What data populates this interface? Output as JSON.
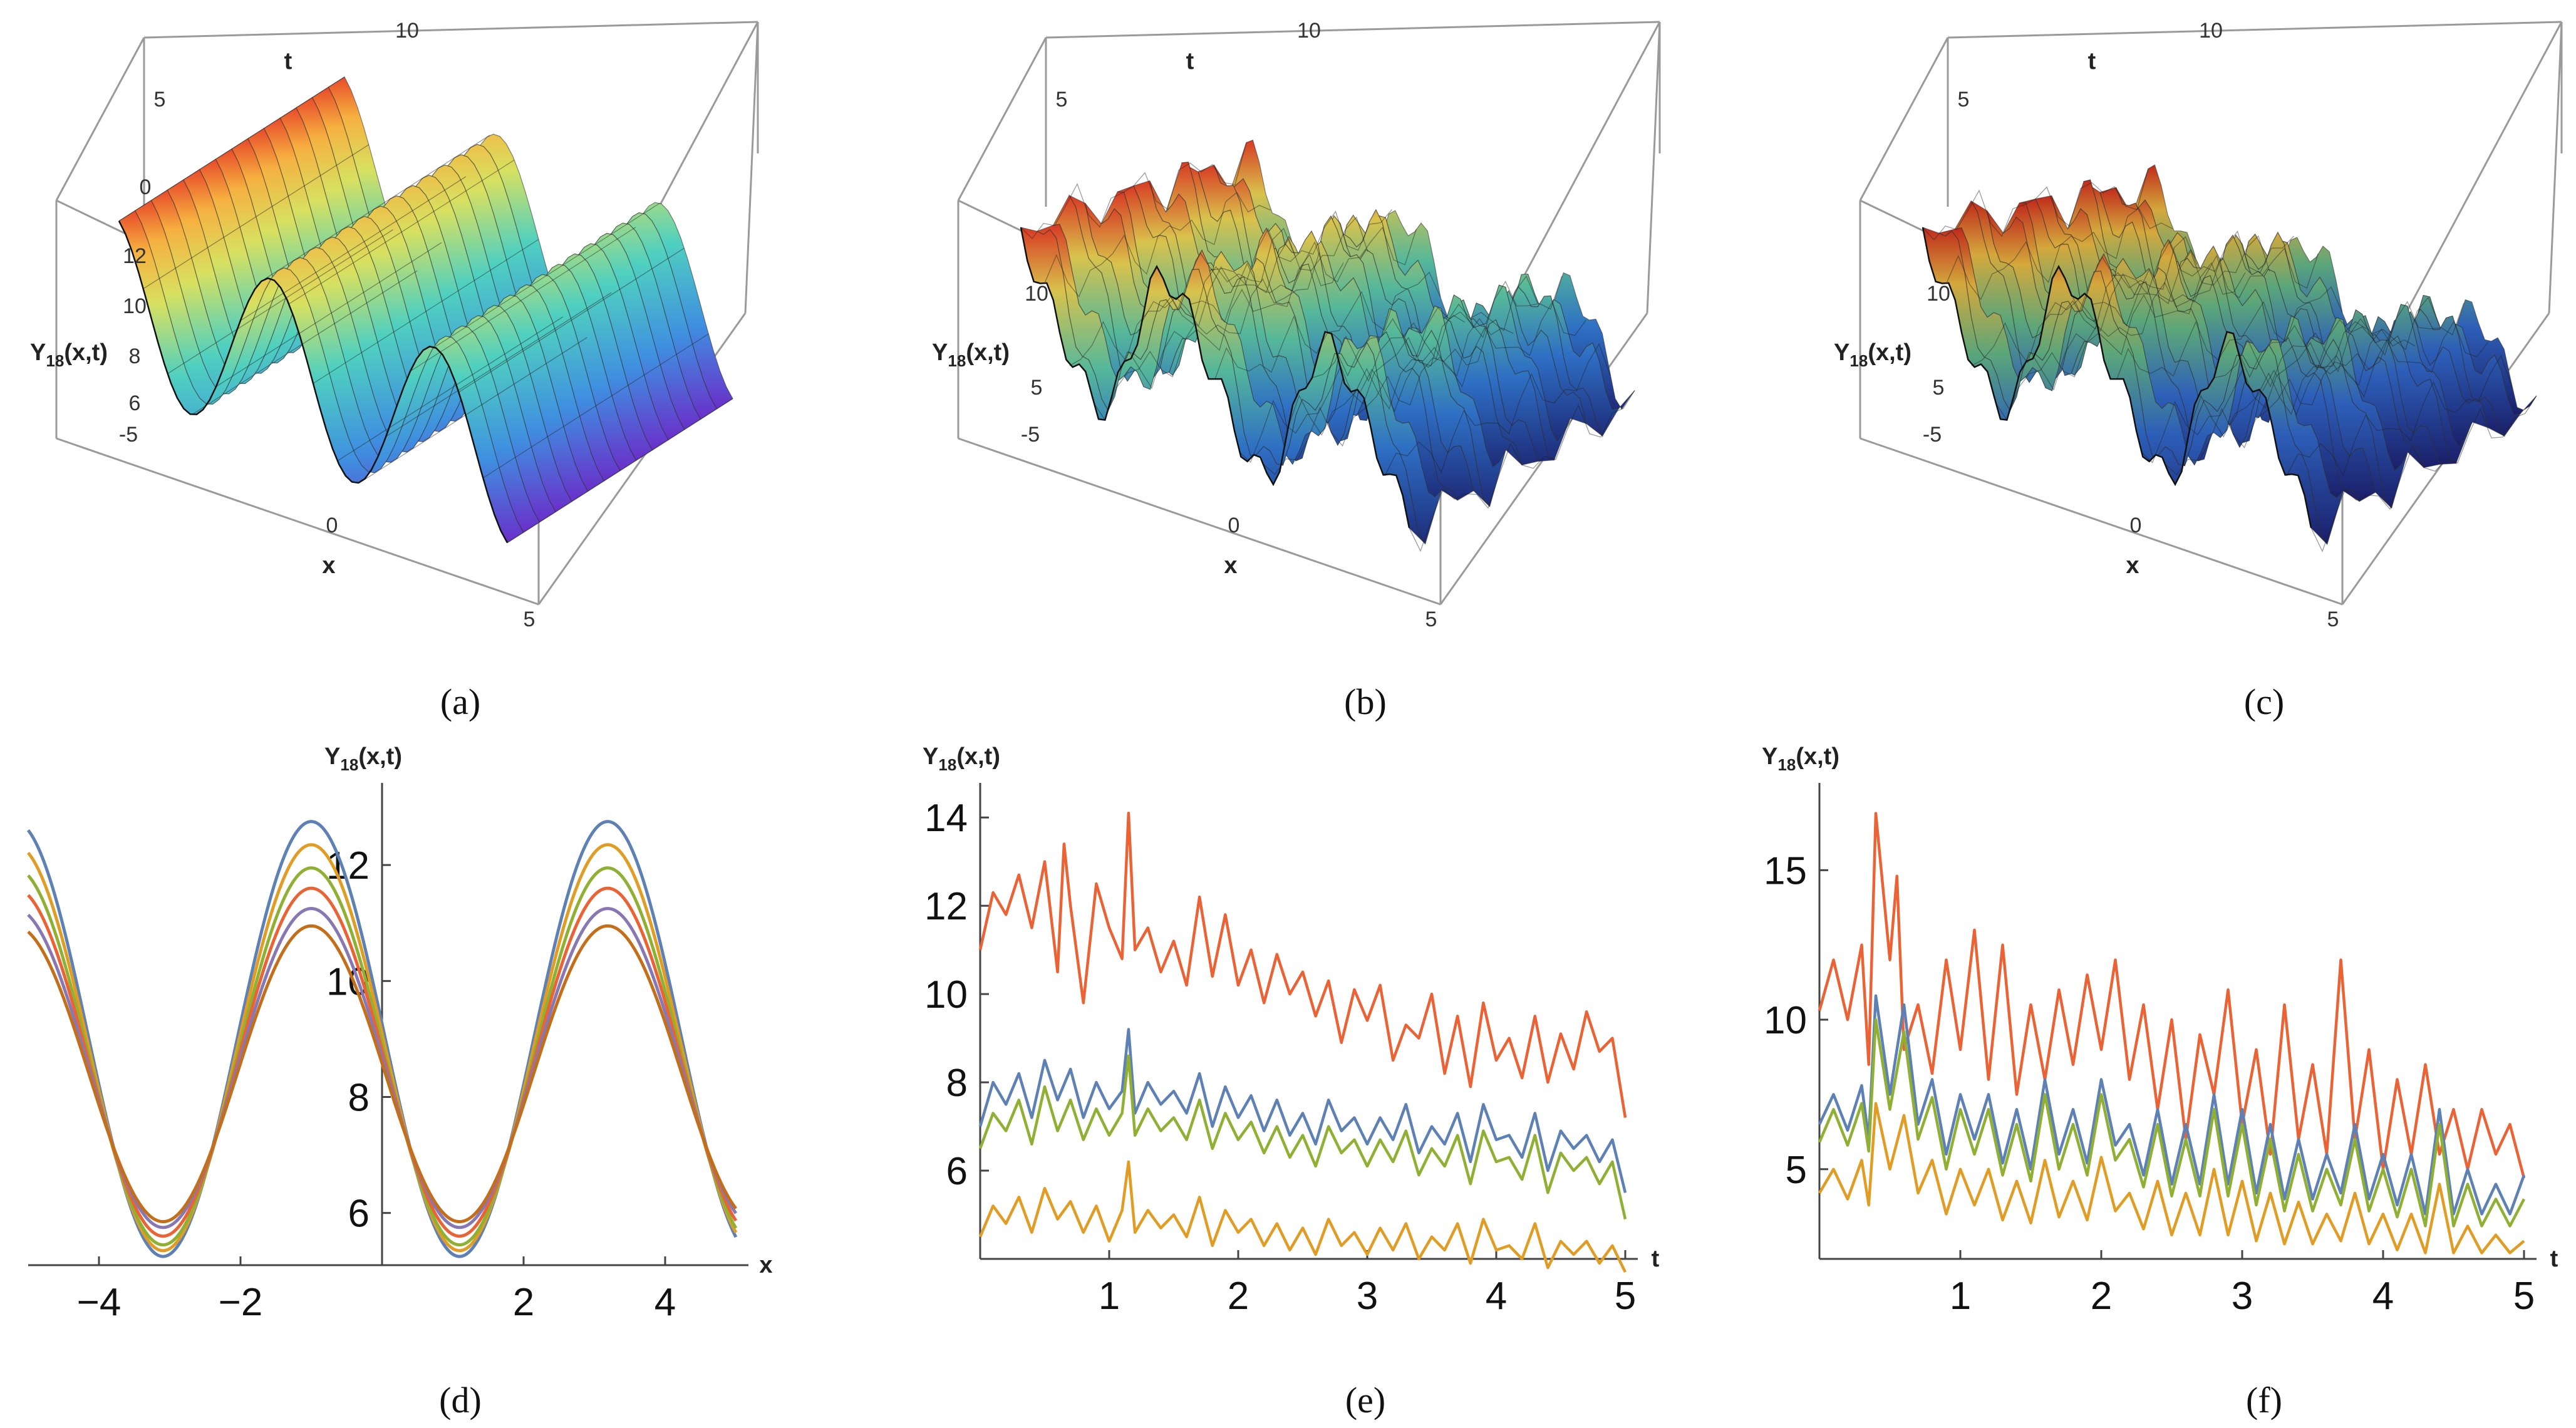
{
  "chart_data": [
    {
      "panel": "a",
      "type": "surface3d",
      "caption": "(a)",
      "x_label": "x",
      "t_label": "t",
      "z_label": "Y18(x,t)",
      "x_ticks": [
        "-5",
        "0",
        "5"
      ],
      "t_ticks": [
        "0",
        "5",
        "10"
      ],
      "z_ticks": [
        "6",
        "8",
        "10",
        "12"
      ],
      "x_range": [
        -5,
        5
      ],
      "t_range": [
        0,
        10
      ],
      "z_range": [
        5.5,
        13
      ]
    },
    {
      "panel": "b",
      "type": "surface3d",
      "caption": "(b)",
      "x_label": "x",
      "t_label": "t",
      "z_label": "Y18(x,t)",
      "x_ticks": [
        "-5",
        "0",
        "5"
      ],
      "t_ticks": [
        "5",
        "10"
      ],
      "z_ticks": [
        "5",
        "10"
      ],
      "x_range": [
        -5,
        5
      ],
      "t_range": [
        0,
        10
      ],
      "z_range": [
        4,
        12
      ]
    },
    {
      "panel": "c",
      "type": "surface3d",
      "caption": "(c)",
      "x_label": "x",
      "t_label": "t",
      "z_label": "Y18(x,t)",
      "x_ticks": [
        "-5",
        "0",
        "5"
      ],
      "t_ticks": [
        "5",
        "10"
      ],
      "z_ticks": [
        "5",
        "10"
      ],
      "x_range": [
        -5,
        5
      ],
      "t_range": [
        0,
        10
      ],
      "z_range": [
        2,
        12
      ]
    },
    {
      "panel": "d",
      "type": "line",
      "caption": "(d)",
      "xlabel": "x",
      "ylabel": "Y18(x,t)",
      "xlim": [
        -5,
        5
      ],
      "ylim": [
        5.1,
        13.2
      ],
      "x_ticks": [
        -4,
        -2,
        2,
        4
      ],
      "y_ticks": [
        6,
        8,
        10,
        12
      ],
      "colors": [
        "#5e81b5",
        "#e19c24",
        "#8fb032",
        "#eb6235",
        "#8778b3",
        "#c56e1a"
      ],
      "series": [
        {
          "amplitude": 3.75,
          "offset": 9.0
        },
        {
          "amplitude": 3.5,
          "offset": 8.85
        },
        {
          "amplitude": 3.25,
          "offset": 8.7
        },
        {
          "amplitude": 3.0,
          "offset": 8.6
        },
        {
          "amplitude": 2.75,
          "offset": 8.5
        },
        {
          "amplitude": 2.55,
          "offset": 8.4
        }
      ]
    },
    {
      "panel": "e",
      "type": "line",
      "caption": "(e)",
      "xlabel": "t",
      "ylabel": "Y18(x,t)",
      "xlim": [
        0,
        5
      ],
      "ylim": [
        4,
        14.5
      ],
      "x_ticks": [
        1,
        2,
        3,
        4,
        5
      ],
      "y_ticks": [
        6,
        8,
        10,
        12,
        14
      ],
      "series": [
        {
          "color": "#eb6235",
          "x": [
            0,
            0.1,
            0.2,
            0.3,
            0.4,
            0.5,
            0.6,
            0.65,
            0.7,
            0.8,
            0.9,
            1.0,
            1.1,
            1.15,
            1.2,
            1.3,
            1.4,
            1.5,
            1.6,
            1.7,
            1.8,
            1.9,
            2.0,
            2.1,
            2.2,
            2.3,
            2.4,
            2.5,
            2.6,
            2.7,
            2.8,
            2.9,
            3.0,
            3.1,
            3.2,
            3.3,
            3.4,
            3.5,
            3.6,
            3.7,
            3.8,
            3.9,
            4.0,
            4.1,
            4.2,
            4.3,
            4.4,
            4.5,
            4.6,
            4.7,
            4.8,
            4.9,
            5.0
          ],
          "y": [
            11.0,
            12.3,
            11.8,
            12.7,
            11.5,
            13.0,
            10.5,
            13.4,
            12.0,
            9.8,
            12.5,
            11.5,
            10.8,
            14.1,
            11.0,
            11.5,
            10.5,
            11.2,
            10.2,
            12.2,
            10.4,
            11.8,
            10.2,
            11.0,
            9.8,
            10.9,
            10.0,
            10.5,
            9.5,
            10.3,
            8.9,
            10.1,
            9.4,
            10.2,
            8.5,
            9.3,
            9.0,
            10.0,
            8.2,
            9.5,
            7.9,
            9.8,
            8.5,
            9.0,
            8.1,
            9.5,
            8.0,
            9.1,
            8.3,
            9.6,
            8.7,
            9.0,
            7.2
          ]
        },
        {
          "color": "#5e81b5",
          "x": [
            0,
            0.1,
            0.2,
            0.3,
            0.4,
            0.5,
            0.6,
            0.7,
            0.8,
            0.9,
            1.0,
            1.1,
            1.15,
            1.2,
            1.3,
            1.4,
            1.5,
            1.6,
            1.7,
            1.8,
            1.9,
            2.0,
            2.1,
            2.2,
            2.3,
            2.4,
            2.5,
            2.6,
            2.7,
            2.8,
            2.9,
            3.0,
            3.1,
            3.2,
            3.3,
            3.4,
            3.5,
            3.6,
            3.7,
            3.8,
            3.9,
            4.0,
            4.1,
            4.2,
            4.3,
            4.4,
            4.5,
            4.6,
            4.7,
            4.8,
            4.9,
            5.0
          ],
          "y": [
            7.0,
            8.0,
            7.5,
            8.2,
            7.2,
            8.5,
            7.6,
            8.3,
            7.2,
            8.0,
            7.4,
            7.8,
            9.2,
            7.3,
            8.0,
            7.5,
            7.8,
            7.3,
            8.2,
            7.0,
            7.9,
            7.2,
            7.7,
            6.9,
            7.6,
            6.8,
            7.3,
            6.6,
            7.6,
            6.9,
            7.2,
            6.6,
            7.2,
            6.7,
            7.5,
            6.4,
            7.0,
            6.6,
            7.3,
            6.2,
            7.5,
            6.7,
            6.8,
            6.3,
            7.3,
            6.0,
            6.9,
            6.5,
            6.8,
            6.2,
            6.7,
            5.5
          ]
        },
        {
          "color": "#8fb032",
          "x": [
            0,
            0.1,
            0.2,
            0.3,
            0.4,
            0.5,
            0.6,
            0.7,
            0.8,
            0.9,
            1.0,
            1.1,
            1.15,
            1.2,
            1.3,
            1.4,
            1.5,
            1.6,
            1.7,
            1.8,
            1.9,
            2.0,
            2.1,
            2.2,
            2.3,
            2.4,
            2.5,
            2.6,
            2.7,
            2.8,
            2.9,
            3.0,
            3.1,
            3.2,
            3.3,
            3.4,
            3.5,
            3.6,
            3.7,
            3.8,
            3.9,
            4.0,
            4.1,
            4.2,
            4.3,
            4.4,
            4.5,
            4.6,
            4.7,
            4.8,
            4.9,
            5.0
          ],
          "y": [
            6.5,
            7.3,
            6.9,
            7.6,
            6.6,
            7.9,
            6.9,
            7.6,
            6.7,
            7.4,
            6.8,
            7.3,
            8.6,
            6.8,
            7.4,
            6.9,
            7.2,
            6.7,
            7.6,
            6.5,
            7.3,
            6.7,
            7.1,
            6.4,
            7.0,
            6.3,
            6.8,
            6.1,
            7.0,
            6.4,
            6.7,
            6.1,
            6.7,
            6.2,
            6.9,
            5.9,
            6.5,
            6.1,
            6.8,
            5.7,
            6.9,
            6.2,
            6.3,
            5.8,
            6.8,
            5.5,
            6.4,
            6.0,
            6.3,
            5.7,
            6.2,
            4.9
          ]
        },
        {
          "color": "#e19c24",
          "x": [
            0,
            0.1,
            0.2,
            0.3,
            0.4,
            0.5,
            0.6,
            0.7,
            0.8,
            0.9,
            1.0,
            1.1,
            1.15,
            1.2,
            1.3,
            1.4,
            1.5,
            1.6,
            1.7,
            1.8,
            1.9,
            2.0,
            2.1,
            2.2,
            2.3,
            2.4,
            2.5,
            2.6,
            2.7,
            2.8,
            2.9,
            3.0,
            3.1,
            3.2,
            3.3,
            3.4,
            3.5,
            3.6,
            3.7,
            3.8,
            3.9,
            4.0,
            4.1,
            4.2,
            4.3,
            4.4,
            4.5,
            4.6,
            4.7,
            4.8,
            4.9,
            5.0
          ],
          "y": [
            4.5,
            5.2,
            4.8,
            5.4,
            4.6,
            5.6,
            4.9,
            5.3,
            4.6,
            5.2,
            4.4,
            5.1,
            6.2,
            4.6,
            5.1,
            4.7,
            5.0,
            4.5,
            5.4,
            4.3,
            5.1,
            4.6,
            4.9,
            4.3,
            4.8,
            4.2,
            4.7,
            4.1,
            4.9,
            4.3,
            4.6,
            4.1,
            4.7,
            4.2,
            4.8,
            4.0,
            4.5,
            4.2,
            4.8,
            3.9,
            4.9,
            4.2,
            4.3,
            4.0,
            4.8,
            3.8,
            4.4,
            4.1,
            4.4,
            3.9,
            4.3,
            3.7
          ]
        }
      ]
    },
    {
      "panel": "f",
      "type": "line",
      "caption": "(f)",
      "xlabel": "t",
      "ylabel": "Y18(x,t)",
      "xlim": [
        0,
        5
      ],
      "ylim": [
        2,
        17.5
      ],
      "x_ticks": [
        1,
        2,
        3,
        4,
        5
      ],
      "y_ticks": [
        5,
        10,
        15
      ],
      "series": [
        {
          "color": "#eb6235",
          "x": [
            0,
            0.1,
            0.2,
            0.3,
            0.35,
            0.4,
            0.5,
            0.55,
            0.6,
            0.7,
            0.8,
            0.9,
            1.0,
            1.1,
            1.2,
            1.3,
            1.4,
            1.5,
            1.6,
            1.7,
            1.8,
            1.9,
            2.0,
            2.1,
            2.2,
            2.3,
            2.4,
            2.5,
            2.6,
            2.7,
            2.8,
            2.9,
            3.0,
            3.1,
            3.2,
            3.3,
            3.4,
            3.5,
            3.6,
            3.7,
            3.8,
            3.9,
            4.0,
            4.1,
            4.2,
            4.3,
            4.4,
            4.5,
            4.6,
            4.7,
            4.8,
            4.9,
            5.0
          ],
          "y": [
            10.3,
            12.0,
            10.0,
            12.5,
            8.5,
            16.9,
            12.0,
            14.8,
            9.0,
            10.5,
            8.2,
            12.0,
            9.0,
            13.0,
            8.0,
            12.5,
            7.5,
            10.5,
            8.0,
            11.0,
            8.5,
            11.5,
            9.0,
            12.0,
            8.0,
            10.5,
            7.0,
            10.0,
            6.0,
            9.5,
            7.5,
            11.0,
            6.5,
            9.0,
            5.5,
            10.5,
            6.0,
            8.5,
            5.5,
            12.0,
            6.0,
            9.0,
            5.0,
            8.0,
            5.5,
            8.5,
            5.5,
            7.0,
            5.0,
            7.0,
            5.5,
            6.5,
            4.7
          ]
        },
        {
          "color": "#5e81b5",
          "x": [
            0,
            0.1,
            0.2,
            0.3,
            0.35,
            0.4,
            0.5,
            0.6,
            0.7,
            0.8,
            0.9,
            1.0,
            1.1,
            1.2,
            1.3,
            1.4,
            1.5,
            1.6,
            1.7,
            1.8,
            1.9,
            2.0,
            2.1,
            2.2,
            2.3,
            2.4,
            2.5,
            2.6,
            2.7,
            2.8,
            2.9,
            3.0,
            3.1,
            3.2,
            3.3,
            3.4,
            3.5,
            3.6,
            3.7,
            3.8,
            3.9,
            4.0,
            4.1,
            4.2,
            4.3,
            4.4,
            4.5,
            4.6,
            4.7,
            4.8,
            4.9,
            5.0
          ],
          "y": [
            6.5,
            7.5,
            6.3,
            7.8,
            6.0,
            10.8,
            7.5,
            10.5,
            6.5,
            8.0,
            5.5,
            7.5,
            6.0,
            7.5,
            5.2,
            7.0,
            5.0,
            8.0,
            5.5,
            7.0,
            5.2,
            8.0,
            5.8,
            6.5,
            4.8,
            7.0,
            4.5,
            6.5,
            4.5,
            7.5,
            4.5,
            7.0,
            4.2,
            6.5,
            4.0,
            6.0,
            4.0,
            5.5,
            4.2,
            6.5,
            4.0,
            5.5,
            3.8,
            5.5,
            3.5,
            7.0,
            3.5,
            5.0,
            3.5,
            4.5,
            3.5,
            4.8
          ]
        },
        {
          "color": "#8fb032",
          "x": [
            0,
            0.1,
            0.2,
            0.3,
            0.35,
            0.4,
            0.5,
            0.6,
            0.7,
            0.8,
            0.9,
            1.0,
            1.1,
            1.2,
            1.3,
            1.4,
            1.5,
            1.6,
            1.7,
            1.8,
            1.9,
            2.0,
            2.1,
            2.2,
            2.3,
            2.4,
            2.5,
            2.6,
            2.7,
            2.8,
            2.9,
            3.0,
            3.1,
            3.2,
            3.3,
            3.4,
            3.5,
            3.6,
            3.7,
            3.8,
            3.9,
            4.0,
            4.1,
            4.2,
            4.3,
            4.4,
            4.5,
            4.6,
            4.7,
            4.8,
            4.9,
            5.0
          ],
          "y": [
            5.9,
            7.0,
            5.8,
            7.2,
            5.6,
            10.0,
            7.0,
            9.6,
            6.0,
            7.4,
            5.0,
            7.0,
            5.5,
            7.0,
            4.8,
            6.5,
            4.6,
            7.5,
            5.0,
            6.5,
            4.8,
            7.5,
            5.3,
            6.0,
            4.4,
            6.5,
            4.1,
            6.0,
            4.1,
            7.0,
            4.1,
            6.5,
            3.8,
            6.0,
            3.6,
            5.5,
            3.6,
            5.0,
            3.8,
            6.0,
            3.6,
            5.0,
            3.4,
            5.0,
            3.1,
            6.5,
            3.1,
            4.5,
            3.1,
            4.0,
            3.1,
            4.0
          ]
        },
        {
          "color": "#e19c24",
          "x": [
            0,
            0.1,
            0.2,
            0.3,
            0.35,
            0.4,
            0.5,
            0.6,
            0.7,
            0.8,
            0.9,
            1.0,
            1.1,
            1.2,
            1.3,
            1.4,
            1.5,
            1.6,
            1.7,
            1.8,
            1.9,
            2.0,
            2.1,
            2.2,
            2.3,
            2.4,
            2.5,
            2.6,
            2.7,
            2.8,
            2.9,
            3.0,
            3.1,
            3.2,
            3.3,
            3.4,
            3.5,
            3.6,
            3.7,
            3.8,
            3.9,
            4.0,
            4.1,
            4.2,
            4.3,
            4.4,
            4.5,
            4.6,
            4.7,
            4.8,
            4.9,
            5.0
          ],
          "y": [
            4.2,
            5.0,
            4.0,
            5.3,
            3.8,
            7.2,
            5.0,
            6.8,
            4.2,
            5.3,
            3.5,
            5.0,
            3.8,
            5.0,
            3.3,
            4.6,
            3.2,
            5.3,
            3.4,
            4.6,
            3.3,
            5.4,
            3.6,
            4.2,
            3.0,
            4.6,
            2.8,
            4.2,
            2.8,
            5.0,
            2.8,
            4.6,
            2.6,
            4.2,
            2.5,
            3.9,
            2.5,
            3.5,
            2.6,
            4.2,
            2.5,
            3.5,
            2.3,
            3.5,
            2.2,
            4.5,
            2.2,
            3.1,
            2.2,
            2.8,
            2.2,
            2.6
          ]
        }
      ]
    }
  ]
}
